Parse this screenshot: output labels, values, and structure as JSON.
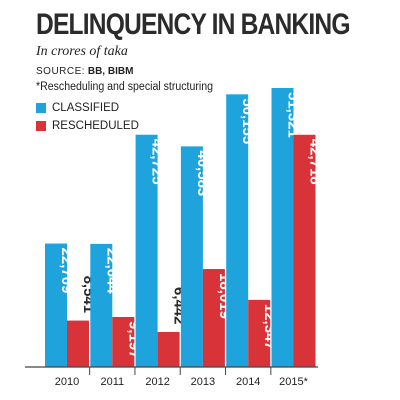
{
  "header": {
    "title": "DELINQUENCY IN BANKING",
    "subtitle": "In crores of taka",
    "source_label": "SOURCE:",
    "source_value": "BB, BIBM",
    "note": "*Rescheduling and special structuring"
  },
  "colors": {
    "classified": "#1fa3dc",
    "rescheduled": "#d9333a",
    "axis": "#444444",
    "label_dark": "#2b2b2b",
    "label_light": "#ffffff"
  },
  "chart_data": {
    "type": "bar",
    "title": "DELINQUENCY IN BANKING",
    "subtitle": "In crores of taka",
    "categories": [
      "2010",
      "2011",
      "2012",
      "2013",
      "2014",
      "2015*"
    ],
    "series": [
      {
        "name": "CLASSIFIED",
        "color": "#1fa3dc",
        "values": [
          22709,
          22644,
          42725,
          40583,
          50155,
          51321
        ],
        "labels": [
          "22,709",
          "22,644",
          "42,725",
          "40,583",
          "50,155",
          "51,321"
        ]
      },
      {
        "name": "RESCHEDULED",
        "color": "#d9333a",
        "values": [
          8541,
          9197,
          6442,
          18019,
          12347,
          42718
        ],
        "labels": [
          "8,541",
          "9,197",
          "6,442",
          "18,019",
          "12,347",
          "42,718"
        ]
      }
    ],
    "ylim": [
      0,
      51321
    ],
    "grid": false,
    "legend": "top-left"
  }
}
